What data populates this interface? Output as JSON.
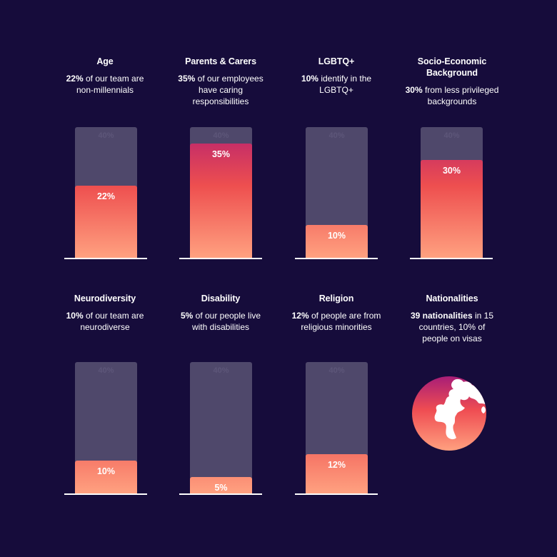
{
  "colors": {
    "background": "#160c3b",
    "track": "#4f486b",
    "fill_top": "#b8226f",
    "fill_mid": "#ee4f4f",
    "fill_bottom": "#ffa180",
    "baseline": "#ffffff"
  },
  "chart_data": {
    "type": "bar",
    "ylim": [
      0,
      40
    ],
    "panels": [
      {
        "title": "Age",
        "highlight": "22%",
        "text": "of our team are non-millennials",
        "cap_label": "40%",
        "value": 22,
        "value_label": "22%"
      },
      {
        "title": "Parents & Carers",
        "highlight": "35%",
        "text": "of our employees have caring responsibilities",
        "cap_label": "40%",
        "value": 35,
        "value_label": "35%"
      },
      {
        "title": "LGBTQ+",
        "highlight": "10%",
        "text": "identify in the LGBTQ+",
        "cap_label": "40%",
        "value": 10,
        "value_label": "10%"
      },
      {
        "title": "Socio-Economic Background",
        "highlight": "30%",
        "text": "from less privileged backgrounds",
        "cap_label": "40%",
        "value": 30,
        "value_label": "30%"
      },
      {
        "title": "Neurodiversity",
        "highlight": "10%",
        "text": "of our team are neurodiverse",
        "cap_label": "40%",
        "value": 10,
        "value_label": "10%"
      },
      {
        "title": "Disability",
        "highlight": "5%",
        "text": "of our people live with disabilities",
        "cap_label": "40%",
        "value": 5,
        "value_label": "5%"
      },
      {
        "title": "Religion",
        "highlight": "12%",
        "text": "of people are from religious minorities",
        "cap_label": "40%",
        "value": 12,
        "value_label": "12%"
      }
    ]
  },
  "nationalities": {
    "title": "Nationalities",
    "highlight": "39 nationalities",
    "text": "in 15 countries, 10% of people on visas",
    "icon": "globe-icon"
  }
}
